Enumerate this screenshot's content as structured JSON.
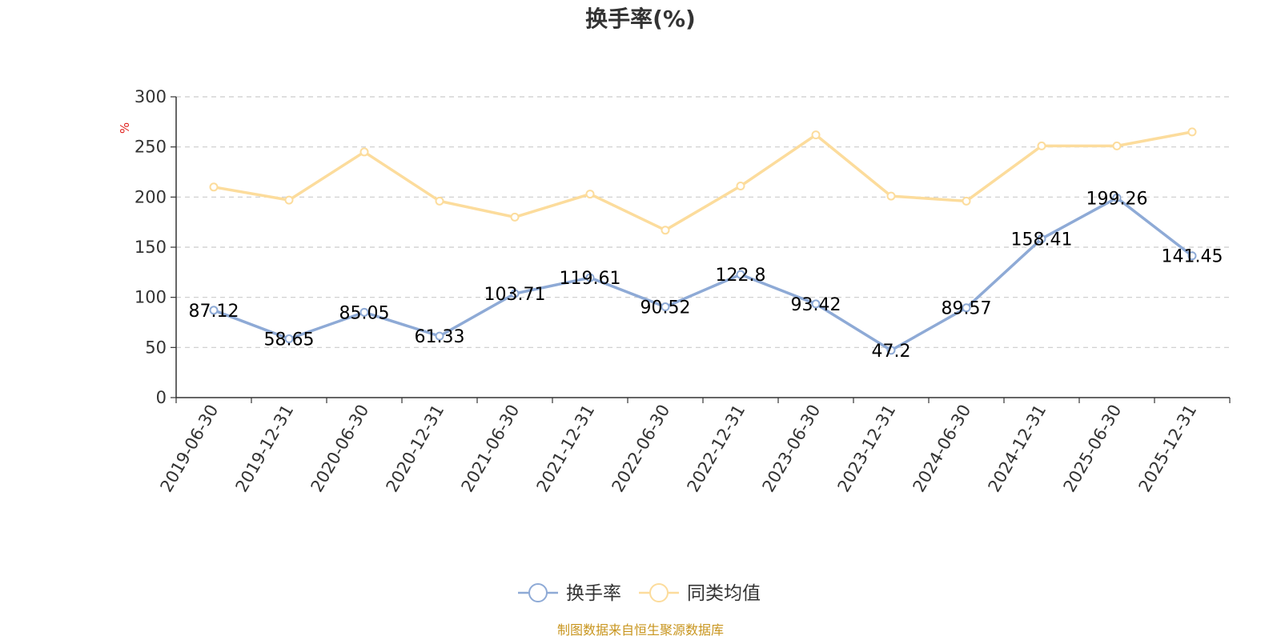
{
  "chart_data": {
    "type": "line",
    "title": "换手率(%)",
    "ylabel": "%",
    "ylim": [
      0,
      300
    ],
    "yticks": [
      0,
      50,
      100,
      150,
      200,
      250,
      300
    ],
    "grid": true,
    "legend_position": "bottom",
    "categories": [
      "2019-06-30",
      "2019-12-31",
      "2020-06-30",
      "2020-12-31",
      "2021-06-30",
      "2021-12-31",
      "2022-06-30",
      "2022-12-31",
      "2023-06-30",
      "2023-12-31",
      "2024-06-30",
      "2024-12-31",
      "2025-06-30",
      "2025-12-31"
    ],
    "series": [
      {
        "name": "换手率",
        "color": "#8eaad6",
        "show_labels": true,
        "values": [
          87.12,
          58.65,
          85.05,
          61.33,
          103.71,
          119.61,
          90.52,
          122.8,
          93.42,
          47.2,
          89.57,
          158.41,
          199.26,
          141.45
        ]
      },
      {
        "name": "同类均值",
        "color": "#fcdc9c",
        "show_labels": false,
        "values": [
          210,
          197,
          245,
          196,
          180,
          203,
          167,
          211,
          262,
          201,
          196,
          251,
          251,
          265
        ]
      }
    ],
    "unit_color": "#e0201c"
  },
  "source": {
    "text": "制图数据来自恒生聚源数据库",
    "color": "#c8951e"
  }
}
